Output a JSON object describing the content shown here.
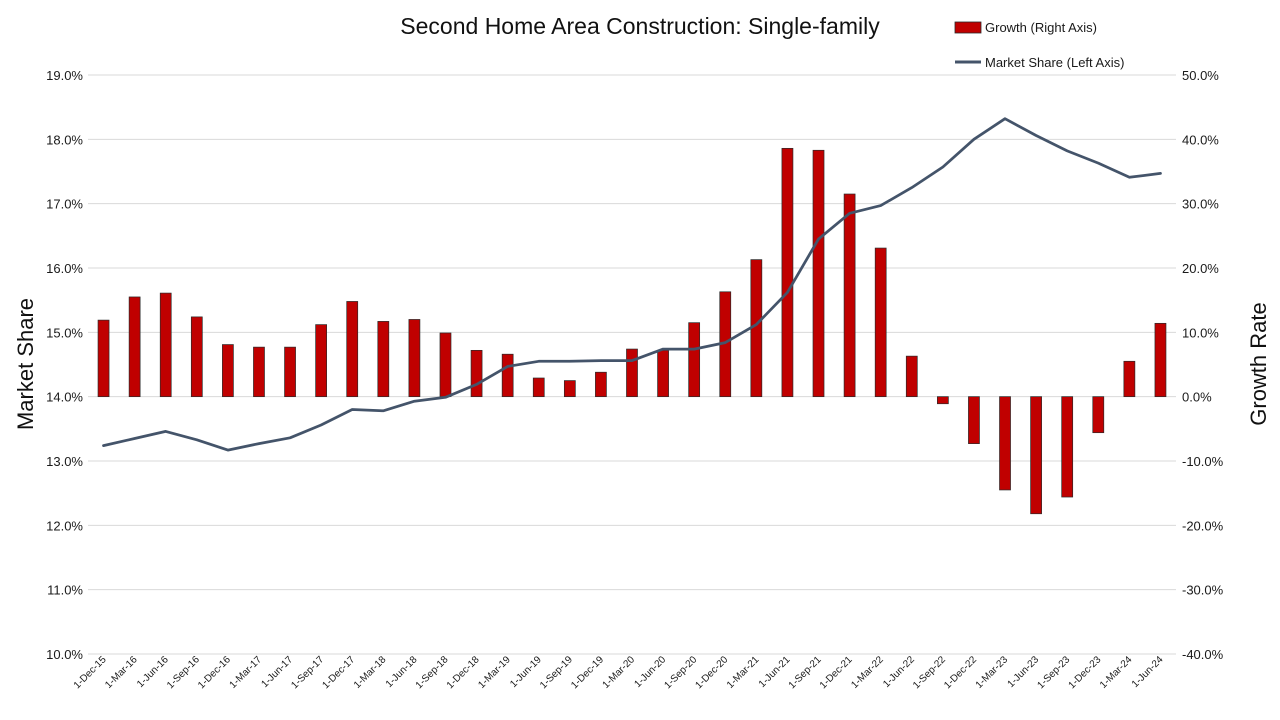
{
  "chart_data": {
    "type": "bar-line-combo",
    "title": "Second Home Area Construction: Single-family",
    "left_axis": {
      "label": "Market Share",
      "range": [
        10.0,
        19.0
      ],
      "ticks": [
        "10.0%",
        "11.0%",
        "12.0%",
        "13.0%",
        "14.0%",
        "15.0%",
        "16.0%",
        "17.0%",
        "18.0%",
        "19.0%"
      ]
    },
    "right_axis": {
      "label": "Growth Rate",
      "range": [
        -40.0,
        50.0
      ],
      "ticks": [
        "-40.0%",
        "-30.0%",
        "-20.0%",
        "-10.0%",
        "0.0%",
        "10.0%",
        "20.0%",
        "30.0%",
        "40.0%",
        "50.0%"
      ]
    },
    "grid": true,
    "legend_position": "top-right",
    "categories": [
      "1-Dec-15",
      "1-Mar-16",
      "1-Jun-16",
      "1-Sep-16",
      "1-Dec-16",
      "1-Mar-17",
      "1-Jun-17",
      "1-Sep-17",
      "1-Dec-17",
      "1-Mar-18",
      "1-Jun-18",
      "1-Sep-18",
      "1-Dec-18",
      "1-Mar-19",
      "1-Jun-19",
      "1-Sep-19",
      "1-Dec-19",
      "1-Mar-20",
      "1-Jun-20",
      "1-Sep-20",
      "1-Dec-20",
      "1-Mar-21",
      "1-Jun-21",
      "1-Sep-21",
      "1-Dec-21",
      "1-Mar-22",
      "1-Jun-22",
      "1-Sep-22",
      "1-Dec-22",
      "1-Mar-23",
      "1-Jun-23",
      "1-Sep-23",
      "1-Dec-23",
      "1-Mar-24",
      "1-Jun-24"
    ],
    "series": [
      {
        "name": "Growth (Right Axis)",
        "type": "bar",
        "axis": "right",
        "color": "#C00000",
        "values": [
          11.9,
          15.5,
          16.1,
          12.4,
          8.1,
          7.7,
          7.7,
          11.2,
          14.8,
          11.7,
          12.0,
          9.9,
          7.2,
          6.6,
          2.9,
          2.5,
          3.8,
          7.4,
          7.2,
          11.5,
          16.3,
          21.3,
          38.6,
          38.3,
          31.5,
          23.1,
          6.3,
          -1.1,
          -7.3,
          -14.5,
          -18.2,
          -15.6,
          -5.6,
          5.5,
          11.4
        ]
      },
      {
        "name": "Market Share (Left Axis)",
        "type": "line",
        "axis": "left",
        "color": "#44546A",
        "values": [
          13.24,
          13.35,
          13.46,
          13.33,
          13.17,
          13.27,
          13.36,
          13.56,
          13.8,
          13.78,
          13.93,
          13.99,
          14.19,
          14.47,
          14.55,
          14.55,
          14.56,
          14.56,
          14.74,
          14.74,
          14.84,
          15.12,
          15.62,
          16.45,
          16.85,
          16.97,
          17.25,
          17.57,
          18.0,
          18.32,
          18.06,
          17.82,
          17.63,
          17.41,
          17.47
        ]
      }
    ]
  }
}
